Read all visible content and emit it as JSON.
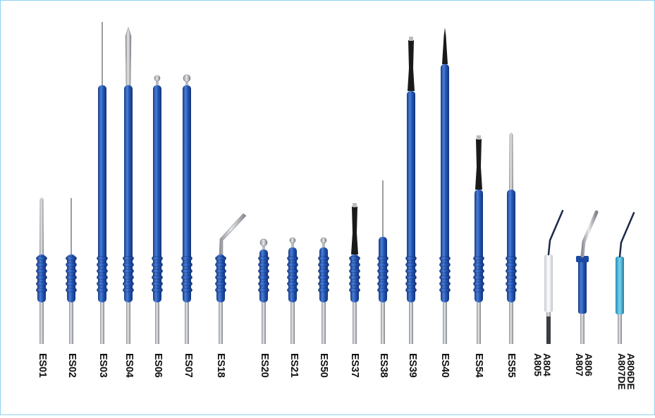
{
  "colors": {
    "background": "#ffffff",
    "frame_border": "#8fd3f0",
    "handle_blue": "#2458b8",
    "handle_light": "#6d97e0",
    "handle_dark": "#163b85",
    "steel": "#b9bcc0",
    "label_text": "#111111"
  },
  "electrodes": [
    {
      "label": "ES01",
      "tip": "blade-thin"
    },
    {
      "label": "ES02",
      "tip": "needle"
    },
    {
      "label": "ES03",
      "tip": "needle"
    },
    {
      "label": "ES04",
      "tip": "blade-wide"
    },
    {
      "label": "ES06",
      "tip": "ball-small"
    },
    {
      "label": "ES07",
      "tip": "ball-large"
    },
    {
      "label": "ES18",
      "tip": "bent-blade"
    },
    {
      "label": "ES20",
      "tip": "ball-large"
    },
    {
      "label": "ES21",
      "tip": "ball-small"
    },
    {
      "label": "ES50",
      "tip": "ball-small"
    },
    {
      "label": "ES37",
      "tip": "black-blade"
    },
    {
      "label": "ES38",
      "tip": "needle"
    },
    {
      "label": "ES39",
      "tip": "black-blade"
    },
    {
      "label": "ES40",
      "tip": "black-needle"
    },
    {
      "label": "ES54",
      "tip": "black-blade"
    },
    {
      "label": "ES55",
      "tip": "blade-thin"
    },
    {
      "label_lines": [
        "A804",
        "A805"
      ],
      "tip": "angled-white"
    },
    {
      "label_lines": [
        "A806",
        "A807"
      ],
      "tip": "angled-blue"
    },
    {
      "label_lines": [
        "A806DE",
        "A807DE"
      ],
      "tip": "angled-cyan"
    }
  ]
}
